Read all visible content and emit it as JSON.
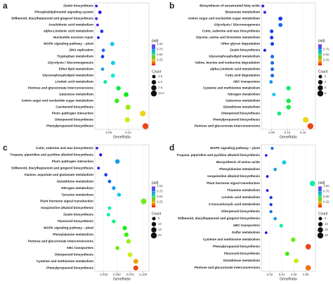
{
  "chart_data": [
    {
      "type": "scatter",
      "label": "a",
      "x_label": "GeneRatio",
      "color_title": "padj",
      "size_title": "Count",
      "categories": [
        "Zeatin biosynthesis",
        "Phosphatidylinositol signaling system",
        "Stilbenoid, diarylheptanoid and gingerol biosynthesis",
        "Arachidonic acid metabolism",
        "alpha-Linolenic acid metabolism",
        "Nucleotide excision repair",
        "MAPK signaling pathway – plant",
        "DNA replication",
        "Tryptophan metabolism",
        "Glycolysis / Gluconeogenesis",
        "Ether lipid metabolism",
        "Glycerophospholipid metabolism",
        "Linoleic acid metabolism",
        "Pentose and glucuronate interconversions",
        "Galactose metabolism",
        "Amino sugar and nucleotide sugar metabolism",
        "Carotenoid biosynthesis",
        "Plant–pathogen interaction",
        "Diterpenoid biosynthesis",
        "Phenylpropanoid biosynthesis"
      ],
      "values": [
        0.018,
        0.027,
        0.018,
        0.021,
        0.032,
        0.023,
        0.059,
        0.036,
        0.034,
        0.061,
        0.034,
        0.061,
        0.041,
        0.075,
        0.095,
        0.071,
        0.1,
        0.138,
        0.098,
        0.145
      ],
      "count": [
        1,
        2,
        1,
        1,
        2,
        1,
        4,
        2,
        2,
        4,
        2,
        4,
        3,
        5,
        6,
        5,
        7,
        9,
        7,
        10
      ],
      "padj": [
        0.95,
        0.9,
        0.95,
        0.95,
        0.85,
        0.9,
        0.7,
        0.8,
        0.85,
        0.7,
        0.75,
        0.65,
        0.6,
        0.5,
        0.45,
        0.4,
        0.3,
        0.2,
        0.25,
        0.05
      ],
      "xlim": [
        0.014,
        0.154
      ],
      "xticks": [
        0.05,
        {
          "value": 0.1,
          "label": "0.10"
        }
      ],
      "padj_lim": [
        0,
        1
      ],
      "padj_ticks": [
        {
          "value": 1,
          "label": "1.00"
        },
        0.75,
        {
          "value": 0.5,
          "label": "0.50"
        },
        0.25
      ],
      "count_ticks": [
        2.5,
        {
          "value": 5,
          "label": "5.0"
        },
        7.5,
        {
          "value": 10,
          "label": "10.0"
        }
      ]
    },
    {
      "type": "scatter",
      "label": "b",
      "x_label": "GeneRatio",
      "color_title": "padj",
      "size_title": "Count",
      "categories": [
        "Biosynthesis of unsaturated fatty acids",
        "Butanoate metabolism",
        "Amino sugar and nucleotide sugar metabolism",
        "Glycolysis / Gluconeogenesis",
        "Cutin, suberine and wax biosynthesis",
        "Glycine, serine and threonine metabolism",
        "Other glycan degradation",
        "Zeatin biosynthesis",
        "Glycerophospholipid metabolism",
        "Valine, leucine and isoleucine degradation",
        "alpha-Linolenic acid metabolism",
        "Fatty acid degradation",
        "ABC transporters",
        "Cysteine and methionine metabolism",
        "Nitrogen metabolism",
        "Galactose metabolism",
        "Glutathione metabolism",
        "Diterpenoid biosynthesis",
        "Phenylpropanoid biosynthesis",
        "Pentose and glucuronate interconversions"
      ],
      "values": [
        0.022,
        0.028,
        0.078,
        0.078,
        0.05,
        0.05,
        0.052,
        0.028,
        0.052,
        0.052,
        0.052,
        0.052,
        0.048,
        0.104,
        0.057,
        0.104,
        0.104,
        0.074,
        0.159,
        0.174
      ],
      "count": [
        1,
        1,
        3,
        3,
        2,
        2,
        2,
        1,
        2,
        2,
        2,
        2,
        2,
        4,
        2,
        4,
        4,
        3,
        7,
        8
      ],
      "padj": [
        0.95,
        0.95,
        0.85,
        0.8,
        0.85,
        0.85,
        0.85,
        0.9,
        0.8,
        0.8,
        0.8,
        0.8,
        0.75,
        0.55,
        0.7,
        0.5,
        0.5,
        0.55,
        0.2,
        0.05
      ],
      "xlim": [
        0.017,
        0.19
      ],
      "xticks": [
        0.05,
        {
          "value": 0.1,
          "label": "0.10"
        },
        0.15
      ],
      "padj_lim": [
        0,
        1
      ],
      "padj_ticks": [
        0.75,
        {
          "value": 0.5,
          "label": "0.50"
        },
        0.25
      ],
      "count_ticks": [
        2,
        4,
        6,
        8
      ]
    },
    {
      "type": "scatter",
      "label": "c",
      "x_label": "GeneRatio",
      "color_title": "padj",
      "size_title": "Count",
      "categories": [
        "Cutin, suberine and wax biosynthesis",
        "Tropane, piperidine and pyridine alkaloid biosynthesis",
        "Plant–pathogen interaction",
        "Stilbenoid, diarylheptanoid and gingerol biosynthesis",
        "Alanine, aspartate and glutamate metabolism",
        "Glutathione metabolism",
        "Nitrogen metabolism",
        "Tyrosine metabolism",
        "Plant hormone signal transduction",
        "Isoquinoline alkaloid biosynthesis",
        "Zeatin biosynthesis",
        "Flavonoid biosynthesis",
        "MAPK signaling pathway – plant",
        "Phenylalanine metabolism",
        "Pentose and glucuronate interconversions",
        "ABC transporters",
        "Diterpenoid biosynthesis",
        "Cysteine and methionine metabolism",
        "Phenylpropanoid biosynthesis"
      ],
      "values": [
        0.012,
        0.019,
        0.051,
        0.015,
        0.029,
        0.036,
        0.044,
        0.054,
        0.101,
        0.036,
        0.034,
        0.044,
        0.065,
        0.068,
        0.072,
        0.051,
        0.075,
        0.086,
        0.086
      ],
      "count": [
        2,
        3,
        10,
        2,
        4,
        5,
        6,
        7,
        18,
        5,
        5,
        6,
        9,
        10,
        10,
        7,
        11,
        13,
        13
      ],
      "padj": [
        0.95,
        0.9,
        0.75,
        0.9,
        0.85,
        0.8,
        0.75,
        0.7,
        0.35,
        0.6,
        0.6,
        0.55,
        0.45,
        0.4,
        0.3,
        0.35,
        0.25,
        0.15,
        0.05
      ],
      "xlim": [
        0.008,
        0.111
      ],
      "xticks": [
        0.025,
        {
          "value": 0.05,
          "label": "0.050"
        },
        0.075,
        {
          "value": 0.1,
          "label": "0.100"
        }
      ],
      "padj_lim": [
        0,
        1
      ],
      "padj_ticks": [
        {
          "value": 1,
          "label": "1.00"
        },
        0.75,
        {
          "value": 0.5,
          "label": "0.50"
        },
        0.25
      ],
      "count_ticks": [
        5,
        10,
        15,
        20
      ]
    },
    {
      "type": "scatter",
      "label": "d",
      "x_label": "GeneRatio",
      "color_title": "padj",
      "size_title": "Count",
      "categories": [
        "MAPK signaling pathway – plant",
        "Tropane, piperidine and pyridine alkaloid biosynthesis",
        "Biosynthesis of amino acids",
        "Phenylalanine metabolism",
        "Isoquinoline alkaloid biosynthesis",
        "Plant hormone signal transduction",
        "Thiamine metabolism",
        "Linoleic acid metabolism",
        "2-Oxocarboxylic acid metabolism",
        "Diterpenoid biosynthesis",
        "Stilbenoid, diarylheptanoid and gingerol biosynthesis",
        "ABC transporters",
        "Sulfur metabolism",
        "Cysteine and methionine metabolism",
        "Phenylpropanoid biosynthesis",
        "Flavonoid biosynthesis",
        "Glutathione metabolism",
        "Pentose and glucuronate interconversions"
      ],
      "values": [
        0.024,
        0.014,
        0.044,
        0.029,
        0.016,
        0.091,
        0.016,
        0.022,
        0.022,
        0.022,
        0.029,
        0.039,
        0.014,
        0.059,
        0.084,
        0.049,
        0.064,
        0.084
      ],
      "count": [
        3,
        2,
        8,
        4,
        2,
        16,
        2,
        3,
        3,
        3,
        4,
        6,
        2,
        10,
        16,
        8,
        12,
        16
      ],
      "padj": [
        0.8,
        0.95,
        0.7,
        0.75,
        0.9,
        0.6,
        0.9,
        0.85,
        0.85,
        0.8,
        0.75,
        0.6,
        0.9,
        0.35,
        0.05,
        0.4,
        0.25,
        0.1
      ],
      "xlim": [
        0.006,
        0.096
      ],
      "xticks": [
        0.02,
        0.04,
        0.06,
        0.08
      ],
      "padj_lim": [
        0,
        1
      ],
      "padj_ticks": [
        {
          "value": 1,
          "label": "1.00"
        },
        0.75,
        {
          "value": 0.5,
          "label": "0.50"
        },
        0.25
      ],
      "count_ticks": [
        5,
        10,
        15,
        20
      ]
    }
  ]
}
